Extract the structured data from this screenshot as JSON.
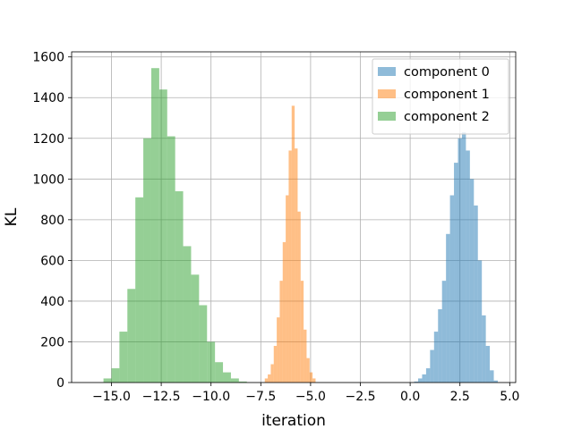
{
  "chart_data": {
    "type": "histogram",
    "xlabel": "iteration",
    "ylabel": "KL",
    "xlim": [
      -17.0,
      5.3
    ],
    "ylim": [
      0,
      1625
    ],
    "xticks": [
      -15.0,
      -12.5,
      -10.0,
      -7.5,
      -5.0,
      -2.5,
      0.0,
      2.5,
      5.0
    ],
    "xtick_labels": [
      "−15.0",
      "−12.5",
      "−10.0",
      "−7.5",
      "−5.0",
      "−2.5",
      "0.0",
      "2.5",
      "5.0"
    ],
    "yticks": [
      0,
      200,
      400,
      600,
      800,
      1000,
      1200,
      1400,
      1600
    ],
    "ytick_labels": [
      "0",
      "200",
      "400",
      "600",
      "800",
      "1000",
      "1200",
      "1400",
      "1600"
    ],
    "grid": true,
    "legend_position": "top-right",
    "series": [
      {
        "name": "component 0",
        "color": "#1f77b4",
        "bin_start": 0.2,
        "bin_width": 0.2,
        "counts": [
          5,
          20,
          40,
          70,
          160,
          250,
          360,
          500,
          730,
          920,
          1080,
          1200,
          1230,
          1140,
          1000,
          870,
          600,
          330,
          180,
          60,
          10
        ]
      },
      {
        "name": "component 1",
        "color": "#ff7f0e",
        "bin_start": -7.3,
        "bin_width": 0.15,
        "counts": [
          20,
          40,
          90,
          180,
          320,
          500,
          690,
          920,
          1140,
          1360,
          1150,
          840,
          500,
          260,
          120,
          50,
          20
        ]
      },
      {
        "name": "component 2",
        "color": "#2ca02c",
        "bin_start": -15.4,
        "bin_width": 0.4,
        "counts": [
          20,
          70,
          250,
          460,
          910,
          1200,
          1545,
          1440,
          1210,
          940,
          670,
          530,
          380,
          200,
          100,
          50,
          20,
          5
        ]
      }
    ]
  }
}
